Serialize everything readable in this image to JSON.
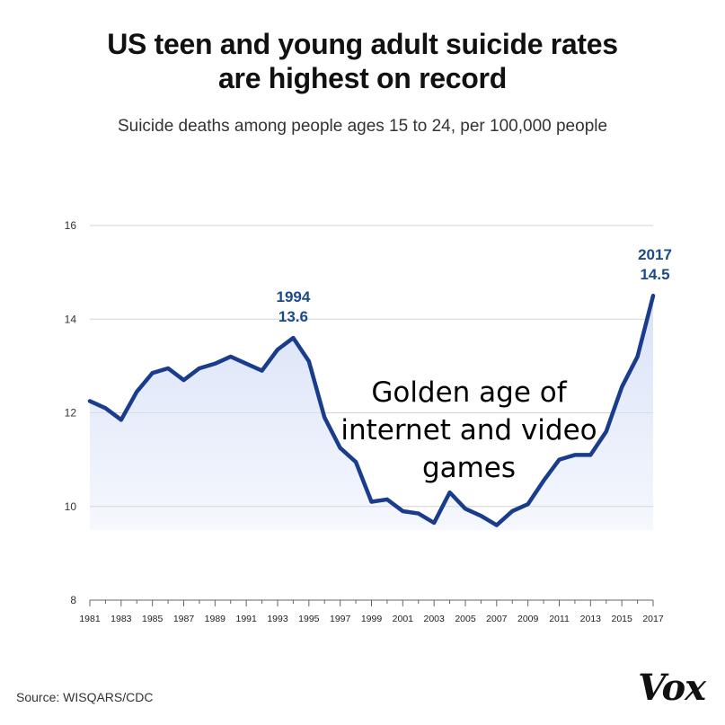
{
  "chart_data": {
    "type": "line",
    "title_lines": [
      "US teen and young adult suicide rates",
      "are highest on record"
    ],
    "subtitle": "Suicide deaths among people ages 15 to 24, per 100,000 people",
    "x": [
      1981,
      1982,
      1983,
      1984,
      1985,
      1986,
      1987,
      1988,
      1989,
      1990,
      1991,
      1992,
      1993,
      1994,
      1995,
      1996,
      1997,
      1998,
      1999,
      2000,
      2001,
      2002,
      2003,
      2004,
      2005,
      2006,
      2007,
      2008,
      2009,
      2010,
      2011,
      2012,
      2013,
      2014,
      2015,
      2016,
      2017
    ],
    "values": [
      12.25,
      12.1,
      11.85,
      12.45,
      12.85,
      12.95,
      12.7,
      12.95,
      13.05,
      13.2,
      13.05,
      12.9,
      13.35,
      13.6,
      13.1,
      11.9,
      11.25,
      10.95,
      10.1,
      10.15,
      9.9,
      9.85,
      9.65,
      10.3,
      9.95,
      9.8,
      9.6,
      9.9,
      10.05,
      10.55,
      11.0,
      11.1,
      11.1,
      11.6,
      12.55,
      13.2,
      14.5
    ],
    "ylim": [
      8,
      16
    ],
    "y_ticks": [
      "8",
      "10",
      "12",
      "14",
      "16"
    ],
    "x_tick_labels": [
      "1981",
      "1983",
      "1985",
      "1987",
      "1989",
      "1991",
      "1993",
      "1995",
      "1997",
      "1999",
      "2001",
      "2003",
      "2005",
      "2007",
      "2009",
      "2011",
      "2013",
      "2015",
      "2017"
    ],
    "grid": true,
    "annotations": [
      {
        "year_label": "1994",
        "value_label": "13.6"
      },
      {
        "year_label": "2017",
        "value_label": "14.5"
      }
    ],
    "overlay_text_lines": [
      "Golden age of",
      "internet and video",
      "games"
    ],
    "colors": {
      "line": "#1a3c8c",
      "fill": "#d9e2f7",
      "grid": "#d3d3d3",
      "label": "#1a4a8c",
      "axis": "#666666"
    }
  },
  "source": "Source: WISQARS/CDC",
  "brand": "Vox"
}
